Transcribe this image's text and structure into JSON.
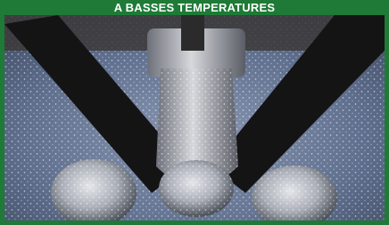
{
  "banner": {
    "text": "A BASSES TEMPERATURES"
  }
}
